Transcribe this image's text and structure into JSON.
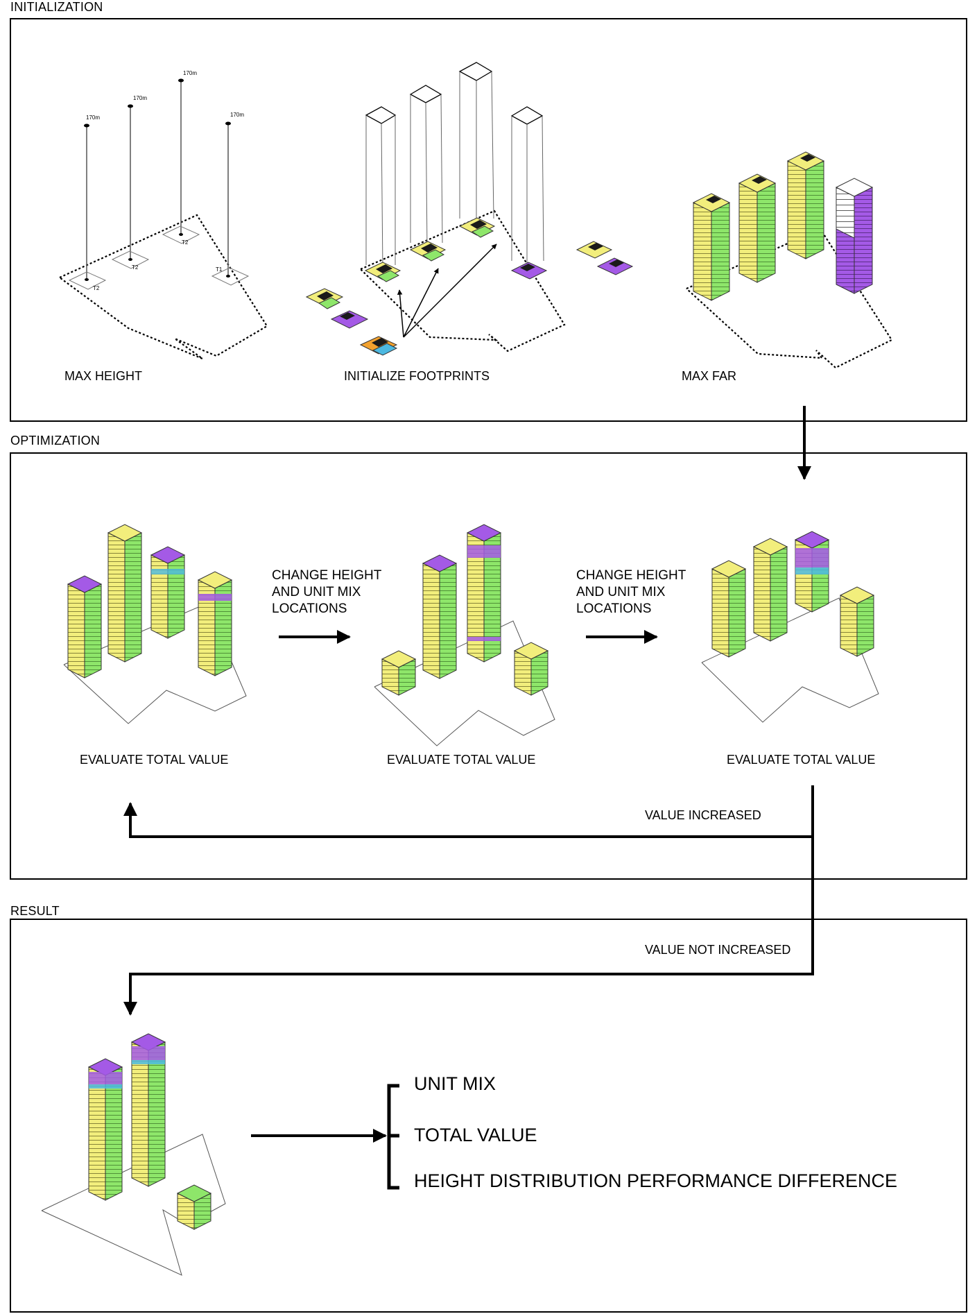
{
  "sections": {
    "initialization": "INITIALIZATION",
    "optimization": "OPTIMIZATION",
    "result": "RESULT"
  },
  "initialization": {
    "max_height": "MAX HEIGHT",
    "initialize_footprints": "INITIALIZE FOOTPRINTS",
    "max_far": "MAX FAR",
    "height_tags": [
      "170m",
      "170m",
      "170m",
      "170m"
    ],
    "tower_tags": [
      "T2",
      "T2",
      "T2",
      "T1"
    ]
  },
  "optimization": {
    "change_1": [
      "CHANGE HEIGHT",
      "AND UNIT MIX",
      "LOCATIONS"
    ],
    "change_2": [
      "CHANGE HEIGHT",
      "AND UNIT MIX",
      "LOCATIONS"
    ],
    "evaluate_1": "EVALUATE TOTAL VALUE",
    "evaluate_2": "EVALUATE TOTAL VALUE",
    "evaluate_3": "EVALUATE TOTAL VALUE",
    "value_increased": "VALUE INCREASED"
  },
  "result": {
    "value_not_increased": "VALUE NOT INCREASED",
    "outputs": [
      "UNIT MIX",
      "TOTAL VALUE",
      "HEIGHT DISTRIBUTION PERFORMANCE DIFFERENCE"
    ]
  },
  "colors": {
    "yellow": "#f2ee7c",
    "green": "#8ee66a",
    "purple": "#a45ae6",
    "cyan": "#4cb8e0",
    "orange": "#f2a12e",
    "black": "#1a1a1a"
  }
}
